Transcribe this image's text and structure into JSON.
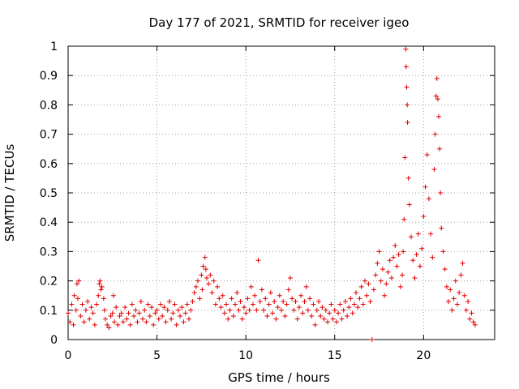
{
  "chart_data": {
    "type": "scatter",
    "title": "Day 177 of 2021, SRMTID for receiver igeo",
    "xlabel": "GPS time / hours",
    "ylabel": "SRMTID / TECUs",
    "xlim": [
      0,
      24
    ],
    "ylim": [
      0,
      1
    ],
    "xticks": [
      0,
      5,
      10,
      15,
      20
    ],
    "xtick_labels": [
      "0",
      "5",
      "10",
      "15",
      "20"
    ],
    "yticks": [
      0,
      0.1,
      0.2,
      0.3,
      0.4,
      0.5,
      0.6,
      0.7,
      0.8,
      0.9,
      1
    ],
    "ytick_labels": [
      "0",
      "0.1",
      "0.2",
      "0.3",
      "0.4",
      "0.5",
      "0.6",
      "0.7",
      "0.8",
      "0.9",
      "1"
    ],
    "grid": true,
    "marker": "+",
    "series_color": "#e00000",
    "series": [
      {
        "name": "SRMTID",
        "points": [
          [
            0.0,
            0.09
          ],
          [
            0.1,
            0.06
          ],
          [
            0.2,
            0.12
          ],
          [
            0.3,
            0.05
          ],
          [
            0.35,
            0.15
          ],
          [
            0.45,
            0.1
          ],
          [
            0.5,
            0.19
          ],
          [
            0.55,
            0.14
          ],
          [
            0.6,
            0.2
          ],
          [
            0.7,
            0.08
          ],
          [
            0.8,
            0.12
          ],
          [
            0.9,
            0.06
          ],
          [
            1.0,
            0.1
          ],
          [
            1.1,
            0.13
          ],
          [
            1.2,
            0.07
          ],
          [
            1.3,
            0.11
          ],
          [
            1.4,
            0.09
          ],
          [
            1.5,
            0.05
          ],
          [
            1.6,
            0.12
          ],
          [
            1.7,
            0.15
          ],
          [
            1.75,
            0.19
          ],
          [
            1.8,
            0.2
          ],
          [
            1.85,
            0.17
          ],
          [
            1.9,
            0.18
          ],
          [
            2.0,
            0.14
          ],
          [
            2.05,
            0.1
          ],
          [
            2.1,
            0.07
          ],
          [
            2.2,
            0.05
          ],
          [
            2.3,
            0.04
          ],
          [
            2.4,
            0.08
          ],
          [
            2.5,
            0.09
          ],
          [
            2.55,
            0.15
          ],
          [
            2.6,
            0.06
          ],
          [
            2.7,
            0.11
          ],
          [
            2.8,
            0.05
          ],
          [
            2.9,
            0.08
          ],
          [
            3.0,
            0.09
          ],
          [
            3.1,
            0.06
          ],
          [
            3.2,
            0.11
          ],
          [
            3.3,
            0.07
          ],
          [
            3.4,
            0.09
          ],
          [
            3.5,
            0.05
          ],
          [
            3.6,
            0.12
          ],
          [
            3.7,
            0.08
          ],
          [
            3.8,
            0.1
          ],
          [
            3.9,
            0.06
          ],
          [
            4.0,
            0.09
          ],
          [
            4.1,
            0.13
          ],
          [
            4.2,
            0.07
          ],
          [
            4.3,
            0.1
          ],
          [
            4.4,
            0.06
          ],
          [
            4.5,
            0.12
          ],
          [
            4.6,
            0.08
          ],
          [
            4.7,
            0.11
          ],
          [
            4.8,
            0.05
          ],
          [
            4.9,
            0.09
          ],
          [
            5.0,
            0.1
          ],
          [
            5.1,
            0.07
          ],
          [
            5.2,
            0.12
          ],
          [
            5.3,
            0.08
          ],
          [
            5.4,
            0.11
          ],
          [
            5.5,
            0.06
          ],
          [
            5.6,
            0.1
          ],
          [
            5.7,
            0.13
          ],
          [
            5.8,
            0.07
          ],
          [
            5.9,
            0.09
          ],
          [
            6.0,
            0.12
          ],
          [
            6.1,
            0.05
          ],
          [
            6.2,
            0.1
          ],
          [
            6.3,
            0.08
          ],
          [
            6.4,
            0.11
          ],
          [
            6.5,
            0.06
          ],
          [
            6.6,
            0.09
          ],
          [
            6.7,
            0.12
          ],
          [
            6.8,
            0.07
          ],
          [
            6.9,
            0.1
          ],
          [
            7.0,
            0.13
          ],
          [
            7.1,
            0.16
          ],
          [
            7.2,
            0.18
          ],
          [
            7.3,
            0.2
          ],
          [
            7.4,
            0.14
          ],
          [
            7.5,
            0.22
          ],
          [
            7.55,
            0.17
          ],
          [
            7.6,
            0.25
          ],
          [
            7.7,
            0.28
          ],
          [
            7.75,
            0.24
          ],
          [
            7.8,
            0.21
          ],
          [
            7.9,
            0.19
          ],
          [
            8.0,
            0.22
          ],
          [
            8.1,
            0.16
          ],
          [
            8.2,
            0.2
          ],
          [
            8.3,
            0.12
          ],
          [
            8.4,
            0.18
          ],
          [
            8.5,
            0.14
          ],
          [
            8.6,
            0.11
          ],
          [
            8.7,
            0.15
          ],
          [
            8.8,
            0.09
          ],
          [
            8.9,
            0.12
          ],
          [
            9.0,
            0.07
          ],
          [
            9.1,
            0.1
          ],
          [
            9.2,
            0.14
          ],
          [
            9.3,
            0.08
          ],
          [
            9.4,
            0.12
          ],
          [
            9.5,
            0.16
          ],
          [
            9.6,
            0.1
          ],
          [
            9.7,
            0.13
          ],
          [
            9.8,
            0.07
          ],
          [
            9.9,
            0.11
          ],
          [
            10.0,
            0.09
          ],
          [
            10.1,
            0.14
          ],
          [
            10.2,
            0.1
          ],
          [
            10.3,
            0.18
          ],
          [
            10.4,
            0.12
          ],
          [
            10.5,
            0.15
          ],
          [
            10.6,
            0.1
          ],
          [
            10.7,
            0.27
          ],
          [
            10.8,
            0.13
          ],
          [
            10.9,
            0.17
          ],
          [
            11.0,
            0.1
          ],
          [
            11.1,
            0.14
          ],
          [
            11.2,
            0.08
          ],
          [
            11.3,
            0.12
          ],
          [
            11.4,
            0.16
          ],
          [
            11.5,
            0.09
          ],
          [
            11.6,
            0.13
          ],
          [
            11.7,
            0.07
          ],
          [
            11.8,
            0.11
          ],
          [
            11.9,
            0.15
          ],
          [
            12.0,
            0.1
          ],
          [
            12.1,
            0.13
          ],
          [
            12.2,
            0.08
          ],
          [
            12.3,
            0.12
          ],
          [
            12.4,
            0.17
          ],
          [
            12.5,
            0.21
          ],
          [
            12.6,
            0.14
          ],
          [
            12.7,
            0.1
          ],
          [
            12.8,
            0.13
          ],
          [
            12.9,
            0.07
          ],
          [
            13.0,
            0.11
          ],
          [
            13.1,
            0.15
          ],
          [
            13.2,
            0.09
          ],
          [
            13.3,
            0.13
          ],
          [
            13.4,
            0.18
          ],
          [
            13.5,
            0.1
          ],
          [
            13.6,
            0.14
          ],
          [
            13.7,
            0.08
          ],
          [
            13.8,
            0.12
          ],
          [
            13.9,
            0.05
          ],
          [
            14.0,
            0.1
          ],
          [
            14.1,
            0.13
          ],
          [
            14.2,
            0.08
          ],
          [
            14.3,
            0.11
          ],
          [
            14.4,
            0.07
          ],
          [
            14.5,
            0.1
          ],
          [
            14.6,
            0.06
          ],
          [
            14.7,
            0.09
          ],
          [
            14.8,
            0.12
          ],
          [
            14.9,
            0.07
          ],
          [
            15.0,
            0.1
          ],
          [
            15.1,
            0.06
          ],
          [
            15.2,
            0.09
          ],
          [
            15.3,
            0.12
          ],
          [
            15.4,
            0.07
          ],
          [
            15.5,
            0.1
          ],
          [
            15.6,
            0.13
          ],
          [
            15.7,
            0.08
          ],
          [
            15.8,
            0.11
          ],
          [
            15.9,
            0.14
          ],
          [
            16.0,
            0.09
          ],
          [
            16.1,
            0.12
          ],
          [
            16.2,
            0.16
          ],
          [
            16.3,
            0.11
          ],
          [
            16.4,
            0.14
          ],
          [
            16.5,
            0.18
          ],
          [
            16.6,
            0.12
          ],
          [
            16.7,
            0.2
          ],
          [
            16.8,
            0.15
          ],
          [
            16.9,
            0.19
          ],
          [
            17.0,
            0.13
          ],
          [
            17.1,
            0.0
          ],
          [
            17.2,
            0.17
          ],
          [
            17.3,
            0.22
          ],
          [
            17.4,
            0.26
          ],
          [
            17.5,
            0.3
          ],
          [
            17.6,
            0.2
          ],
          [
            17.7,
            0.24
          ],
          [
            17.8,
            0.15
          ],
          [
            17.9,
            0.19
          ],
          [
            18.0,
            0.23
          ],
          [
            18.1,
            0.27
          ],
          [
            18.2,
            0.21
          ],
          [
            18.3,
            0.28
          ],
          [
            18.4,
            0.32
          ],
          [
            18.5,
            0.25
          ],
          [
            18.6,
            0.29
          ],
          [
            18.7,
            0.18
          ],
          [
            18.8,
            0.22
          ],
          [
            18.85,
            0.3
          ],
          [
            18.9,
            0.41
          ],
          [
            18.95,
            0.62
          ],
          [
            19.0,
            0.99
          ],
          [
            19.02,
            0.93
          ],
          [
            19.05,
            0.86
          ],
          [
            19.08,
            0.8
          ],
          [
            19.1,
            0.74
          ],
          [
            19.15,
            0.55
          ],
          [
            19.2,
            0.46
          ],
          [
            19.3,
            0.35
          ],
          [
            19.4,
            0.27
          ],
          [
            19.5,
            0.21
          ],
          [
            19.6,
            0.29
          ],
          [
            19.7,
            0.36
          ],
          [
            19.8,
            0.25
          ],
          [
            19.9,
            0.31
          ],
          [
            20.0,
            0.42
          ],
          [
            20.1,
            0.52
          ],
          [
            20.2,
            0.63
          ],
          [
            20.3,
            0.48
          ],
          [
            20.4,
            0.36
          ],
          [
            20.5,
            0.28
          ],
          [
            20.6,
            0.58
          ],
          [
            20.65,
            0.7
          ],
          [
            20.7,
            0.83
          ],
          [
            20.75,
            0.89
          ],
          [
            20.8,
            0.82
          ],
          [
            20.85,
            0.76
          ],
          [
            20.9,
            0.65
          ],
          [
            20.95,
            0.5
          ],
          [
            21.0,
            0.38
          ],
          [
            21.1,
            0.3
          ],
          [
            21.2,
            0.24
          ],
          [
            21.3,
            0.18
          ],
          [
            21.4,
            0.13
          ],
          [
            21.5,
            0.17
          ],
          [
            21.6,
            0.1
          ],
          [
            21.7,
            0.14
          ],
          [
            21.8,
            0.2
          ],
          [
            21.9,
            0.12
          ],
          [
            22.0,
            0.16
          ],
          [
            22.1,
            0.22
          ],
          [
            22.2,
            0.26
          ],
          [
            22.3,
            0.15
          ],
          [
            22.4,
            0.1
          ],
          [
            22.5,
            0.13
          ],
          [
            22.6,
            0.07
          ],
          [
            22.7,
            0.09
          ],
          [
            22.8,
            0.06
          ],
          [
            22.9,
            0.05
          ]
        ]
      }
    ]
  }
}
